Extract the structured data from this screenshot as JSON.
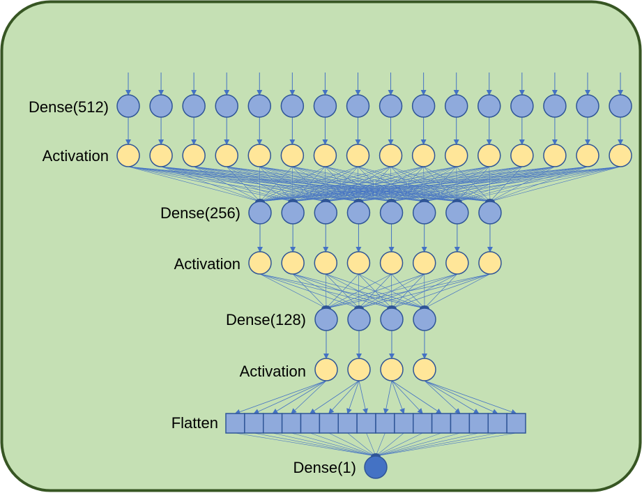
{
  "colors": {
    "panel_fill": "#c5e0b4",
    "panel_border": "#375623",
    "dense_node_fill": "#8faadc",
    "activation_node_fill": "#ffe699",
    "output_node_fill": "#4472c4",
    "node_stroke": "#2f5597",
    "edge": "#4472c4",
    "flatten_cell_fill": "#8faadc"
  },
  "layers": [
    {
      "label": "Dense(512)",
      "kind": "dense",
      "nodes": 16
    },
    {
      "label": "Activation",
      "kind": "activation",
      "nodes": 16
    },
    {
      "label": "Dense(256)",
      "kind": "dense",
      "nodes": 8
    },
    {
      "label": "Activation",
      "kind": "activation",
      "nodes": 8
    },
    {
      "label": "Dense(128)",
      "kind": "dense",
      "nodes": 4
    },
    {
      "label": "Activation",
      "kind": "activation",
      "nodes": 4
    },
    {
      "label": "Flatten",
      "kind": "flatten",
      "nodes": 16
    },
    {
      "label": "Dense(1)",
      "kind": "output",
      "nodes": 1
    }
  ]
}
